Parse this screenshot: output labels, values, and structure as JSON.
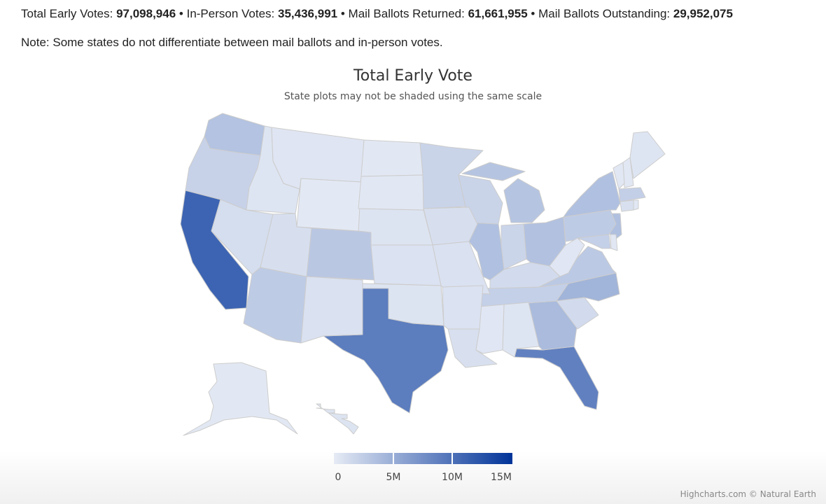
{
  "summary": {
    "total_label": "Total Early Votes:",
    "total_value": "97,098,946",
    "inperson_label": "In-Person Votes:",
    "inperson_value": "35,436,991",
    "mail_returned_label": "Mail Ballots Returned:",
    "mail_returned_value": "61,661,955",
    "mail_outstanding_label": "Mail Ballots Outstanding:",
    "mail_outstanding_value": "29,952,075",
    "separator": "•"
  },
  "note": "Note: Some states do not differentiate between mail ballots and in-person votes.",
  "chart_data": {
    "type": "choropleth",
    "title": "Total Early Vote",
    "subtitle": "State plots may not be shaded using the same scale",
    "color_axis": {
      "min": 0,
      "max": 15000000,
      "min_color": "#e6ebf5",
      "max_color": "#003399",
      "tick_labels": [
        "0",
        "5M",
        "10M",
        "15M"
      ],
      "tick_values": [
        0,
        5000000,
        10000000,
        15000000
      ]
    },
    "states": [
      {
        "code": "CA",
        "value": 11000000
      },
      {
        "code": "TX",
        "value": 9000000
      },
      {
        "code": "FL",
        "value": 8700000
      },
      {
        "code": "NC",
        "value": 4500000
      },
      {
        "code": "GA",
        "value": 3900000
      },
      {
        "code": "NY",
        "value": 3500000
      },
      {
        "code": "NJ",
        "value": 3600000
      },
      {
        "code": "IL",
        "value": 3500000
      },
      {
        "code": "OH",
        "value": 3400000
      },
      {
        "code": "WA",
        "value": 3300000
      },
      {
        "code": "MI",
        "value": 3200000
      },
      {
        "code": "CO",
        "value": 2900000
      },
      {
        "code": "VA",
        "value": 2800000
      },
      {
        "code": "PA",
        "value": 2600000
      },
      {
        "code": "AZ",
        "value": 2600000
      },
      {
        "code": "MA",
        "value": 2300000
      },
      {
        "code": "TN",
        "value": 2200000
      },
      {
        "code": "MD",
        "value": 2200000
      },
      {
        "code": "OR",
        "value": 2000000
      },
      {
        "code": "MN",
        "value": 1900000
      },
      {
        "code": "WI",
        "value": 1900000
      },
      {
        "code": "IN",
        "value": 1800000
      },
      {
        "code": "KY",
        "value": 1300000
      },
      {
        "code": "SC",
        "value": 1300000
      },
      {
        "code": "NV",
        "value": 1100000
      },
      {
        "code": "UT",
        "value": 1000000
      },
      {
        "code": "IA",
        "value": 1000000
      },
      {
        "code": "MO",
        "value": 800000
      },
      {
        "code": "KS",
        "value": 700000
      },
      {
        "code": "NM",
        "value": 800000
      },
      {
        "code": "LA",
        "value": 900000
      },
      {
        "code": "AL",
        "value": 500000
      },
      {
        "code": "MS",
        "value": 400000
      },
      {
        "code": "AR",
        "value": 700000
      },
      {
        "code": "OK",
        "value": 600000
      },
      {
        "code": "NE",
        "value": 600000
      },
      {
        "code": "CT",
        "value": 900000
      },
      {
        "code": "ME",
        "value": 500000
      },
      {
        "code": "NH",
        "value": 300000
      },
      {
        "code": "VT",
        "value": 300000
      },
      {
        "code": "RI",
        "value": 300000
      },
      {
        "code": "DE",
        "value": 300000
      },
      {
        "code": "WV",
        "value": 400000
      },
      {
        "code": "ID",
        "value": 500000
      },
      {
        "code": "MT",
        "value": 450000
      },
      {
        "code": "WY",
        "value": 200000
      },
      {
        "code": "ND",
        "value": 250000
      },
      {
        "code": "SD",
        "value": 300000
      },
      {
        "code": "AK",
        "value": 250000
      },
      {
        "code": "HI",
        "value": 600000
      }
    ]
  },
  "credits": "Highcharts.com © Natural Earth"
}
